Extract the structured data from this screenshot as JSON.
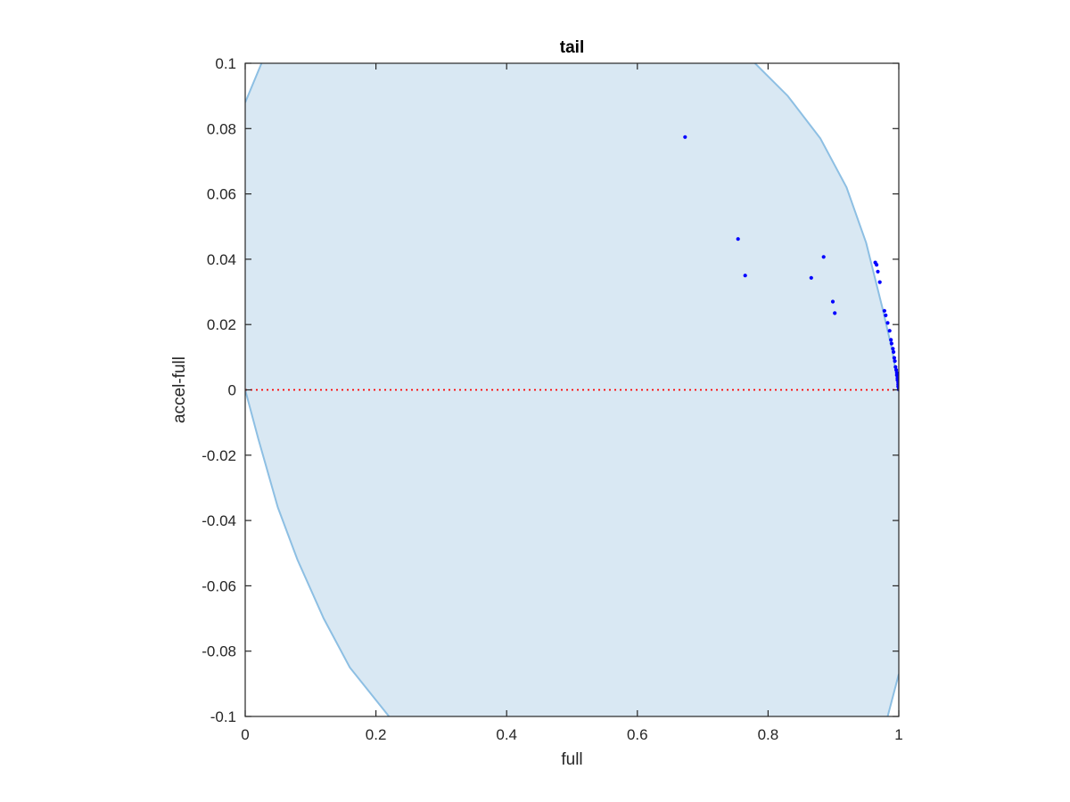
{
  "chart_data": {
    "type": "scatter",
    "title": "tail",
    "xlabel": "full",
    "ylabel": "accel-full",
    "xlim": [
      0,
      1
    ],
    "ylim": [
      -0.1,
      0.1
    ],
    "x_ticks": [
      0,
      0.2,
      0.4,
      0.6,
      0.8,
      1
    ],
    "y_ticks": [
      -0.1,
      -0.08,
      -0.06,
      -0.04,
      -0.02,
      0,
      0.02,
      0.04,
      0.06,
      0.08,
      0.1
    ],
    "x_tick_labels": [
      "0",
      "0.2",
      "0.4",
      "0.6",
      "0.8",
      "1"
    ],
    "y_tick_labels": [
      "-0.1",
      "-0.08",
      "-0.06",
      "-0.04",
      "-0.02",
      "0",
      "0.02",
      "0.04",
      "0.06",
      "0.08",
      "0.1"
    ],
    "grid": false,
    "reference_line": {
      "y": 0,
      "color": "#ff0000",
      "style": "dotted"
    },
    "region": {
      "fill_color": "#d9e8f3",
      "edge_color": "#8dbfe3",
      "left_boundary": [
        [
          0.0,
          0.088
        ],
        [
          0.025,
          0.1
        ]
      ],
      "left_lower_boundary": [
        [
          0.0,
          0.0
        ],
        [
          0.02,
          -0.015
        ],
        [
          0.05,
          -0.036
        ],
        [
          0.08,
          -0.052
        ],
        [
          0.12,
          -0.07
        ],
        [
          0.16,
          -0.085
        ],
        [
          0.22,
          -0.1
        ]
      ],
      "right_boundary": [
        [
          0.78,
          0.1
        ],
        [
          0.83,
          0.09
        ],
        [
          0.88,
          0.077
        ],
        [
          0.92,
          0.062
        ],
        [
          0.95,
          0.045
        ],
        [
          0.975,
          0.025
        ],
        [
          0.99,
          0.012
        ],
        [
          1.0,
          0.0
        ]
      ],
      "right_lower_boundary": [
        [
          0.983,
          -0.1
        ],
        [
          1.0,
          -0.087
        ]
      ]
    },
    "series": [
      {
        "color": "#0000ff",
        "x": [
          0.673,
          0.754,
          0.765,
          0.866,
          0.885,
          0.899,
          0.902,
          0.964,
          0.966,
          0.968,
          0.971,
          0.978,
          0.98,
          0.983,
          0.986,
          0.988,
          0.989,
          0.991,
          0.992,
          0.993,
          0.994,
          0.995,
          0.996,
          0.997,
          0.997,
          0.998,
          0.998,
          0.999,
          0.999,
          0.999,
          1.0,
          1.0,
          1.0
        ],
        "y": [
          0.0774,
          0.0462,
          0.035,
          0.0343,
          0.0407,
          0.027,
          0.0235,
          0.039,
          0.0383,
          0.0362,
          0.033,
          0.0242,
          0.0228,
          0.0205,
          0.0181,
          0.0153,
          0.0142,
          0.0126,
          0.0116,
          0.0098,
          0.0088,
          0.007,
          0.0061,
          0.0052,
          0.0045,
          0.0036,
          0.003,
          0.0022,
          0.0016,
          0.001,
          0.0006,
          0.0003,
          0.0001
        ]
      }
    ]
  }
}
